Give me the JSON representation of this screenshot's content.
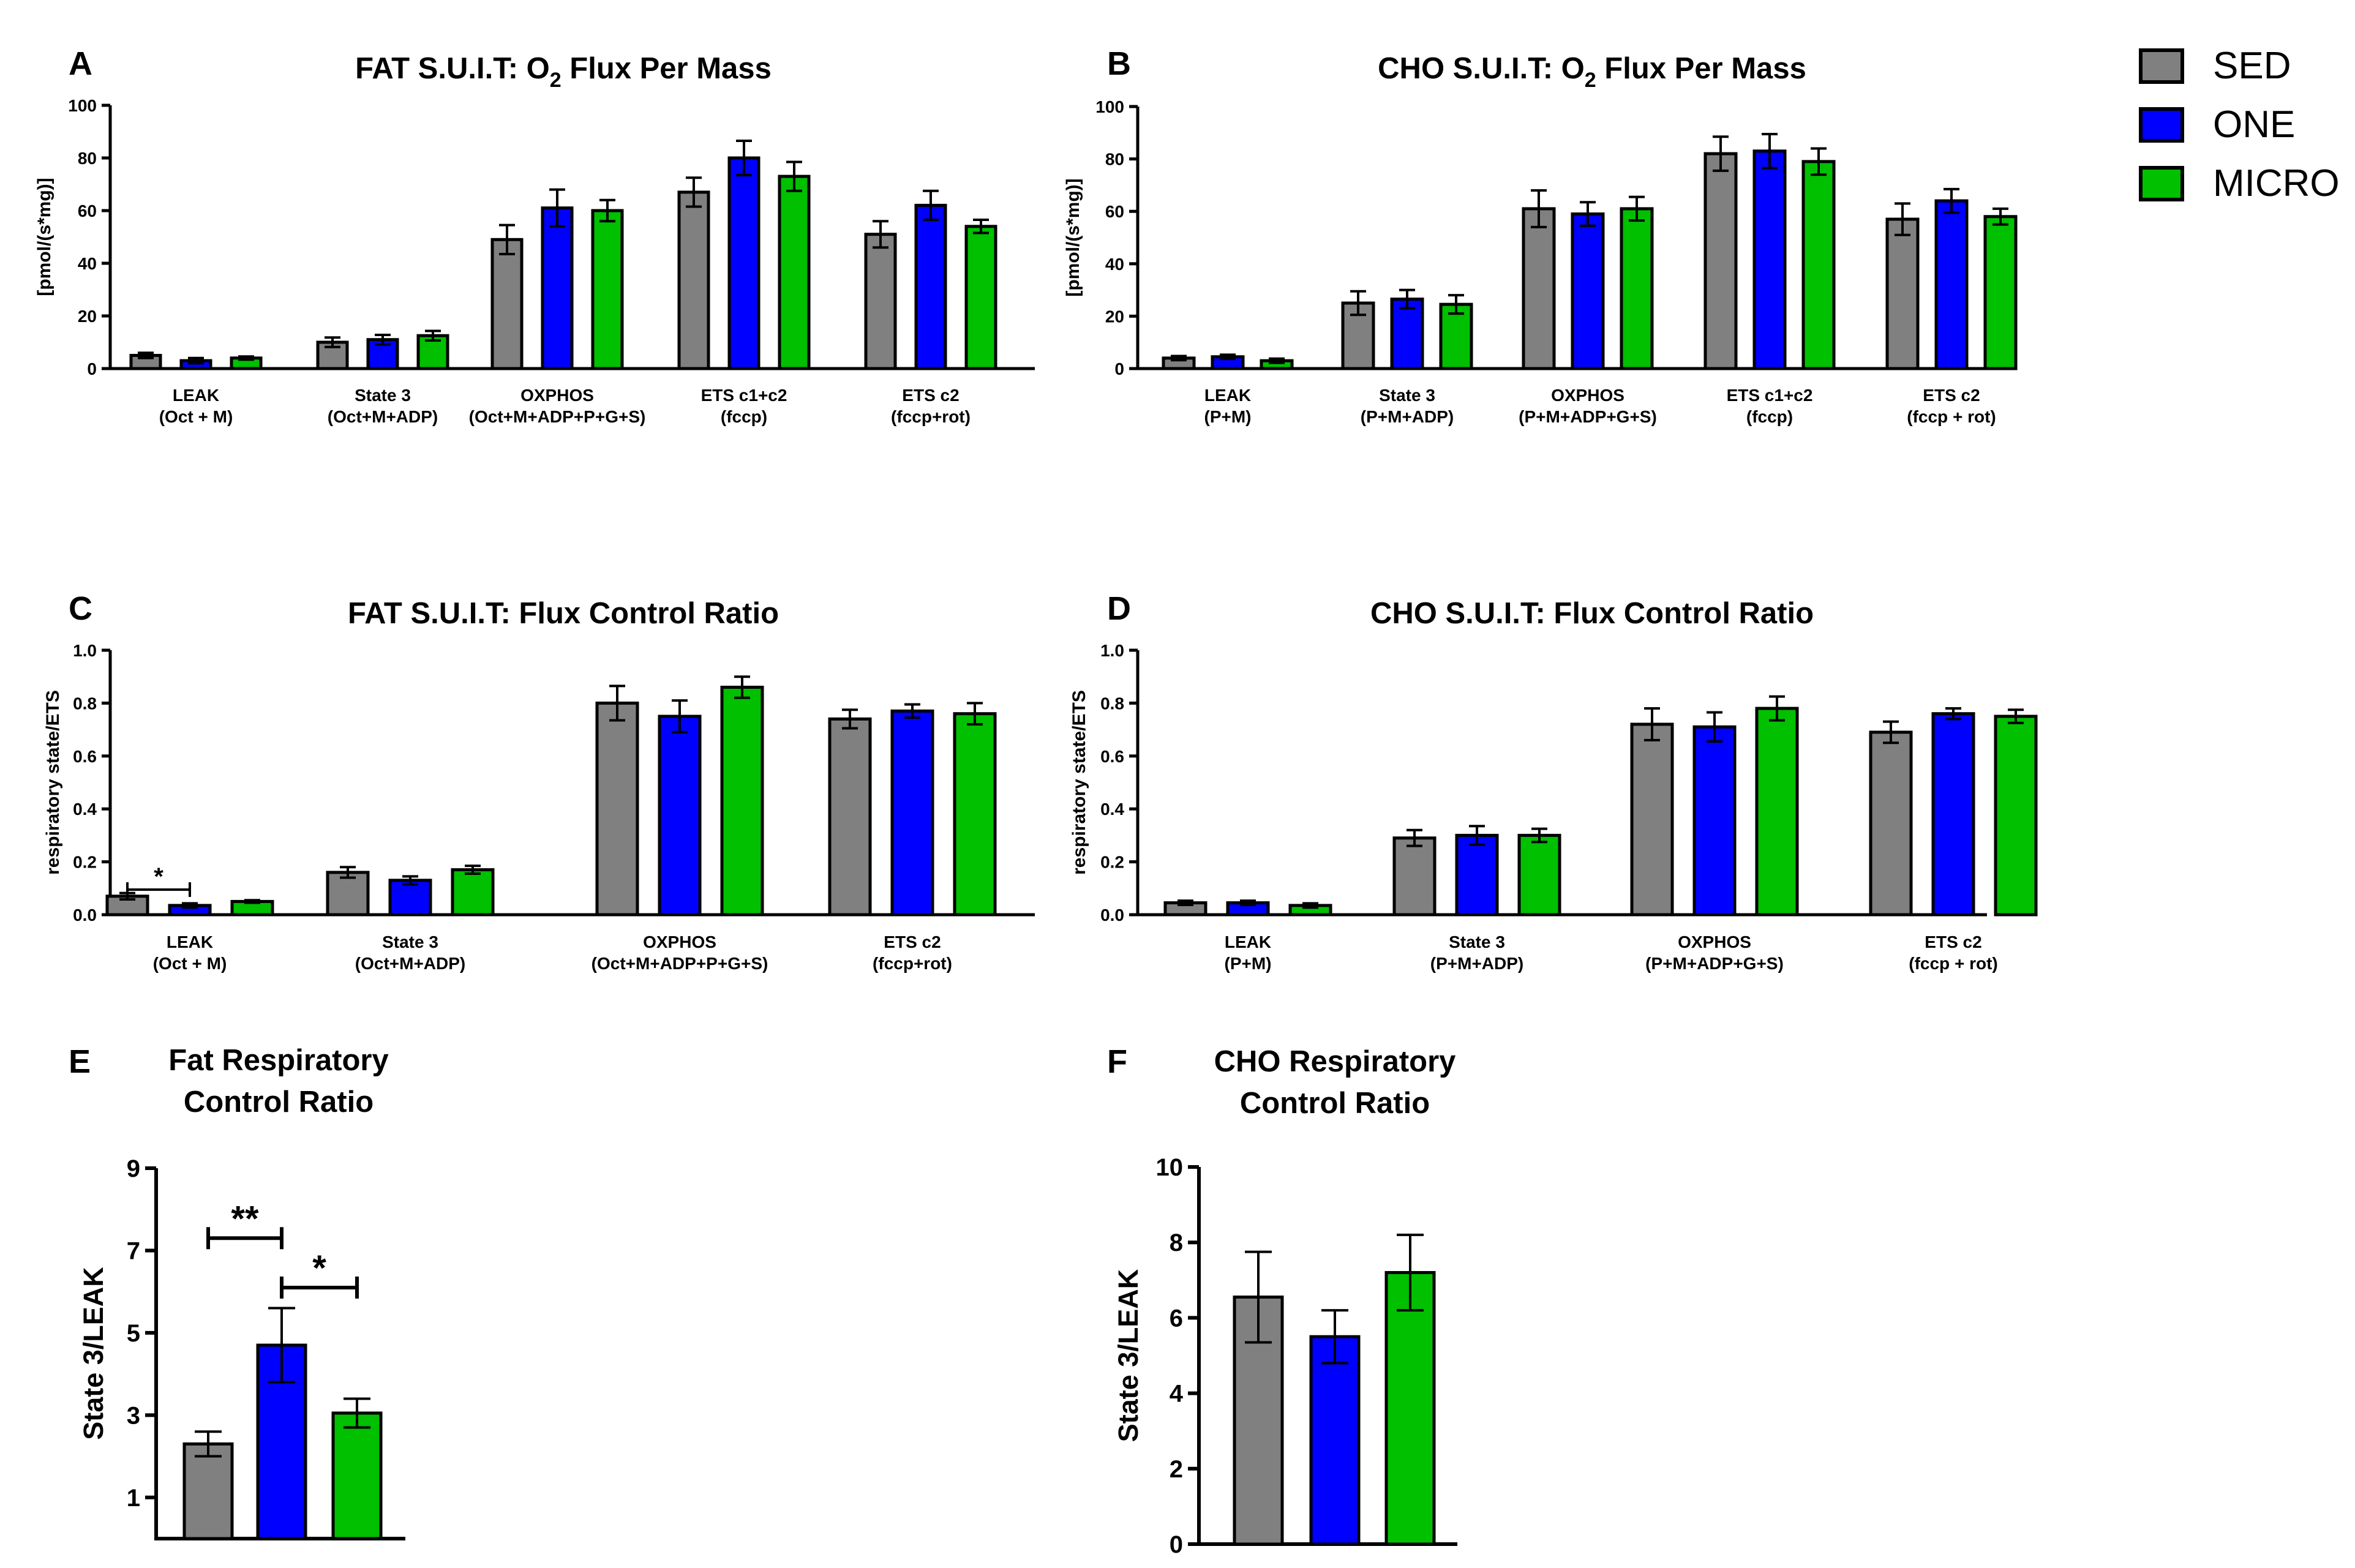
{
  "colors": {
    "SED": "#808080",
    "ONE": "#0000ff",
    "MICRO": "#00c000"
  },
  "legend": {
    "items": [
      "SED",
      "ONE",
      "MICRO"
    ]
  },
  "chart_data": [
    {
      "id": "A",
      "letter": "A",
      "type": "bar",
      "title": "FAT S.U.I.T: O",
      "title_sub": "2",
      "title_rest": " Flux Per Mass",
      "ylabel": "[pmol/(s*mg)]",
      "ylim": [
        0,
        100
      ],
      "ticks": [
        "0",
        "20",
        "40",
        "60",
        "80",
        "100"
      ],
      "categories": [
        [
          "LEAK",
          "(Oct + M)"
        ],
        [
          "State 3",
          "(Oct+M+ADP)"
        ],
        [
          "OXPHOS",
          "(Oct+M+ADP+P+G+S)"
        ],
        [
          "ETS c1+c2",
          "(fccp)"
        ],
        [
          "ETS c2",
          "(fccp+rot)"
        ]
      ],
      "series": [
        {
          "name": "SED",
          "values": [
            5,
            10,
            49,
            67,
            51
          ],
          "errors": [
            1,
            1.8,
            5.5,
            5.5,
            5
          ]
        },
        {
          "name": "ONE",
          "values": [
            3,
            11,
            61,
            80,
            62
          ],
          "errors": [
            1,
            1.8,
            7,
            6.5,
            5.5
          ]
        },
        {
          "name": "MICRO",
          "values": [
            4,
            12.5,
            60,
            73,
            54
          ],
          "errors": [
            0.6,
            1.8,
            4,
            5.5,
            2.5
          ]
        }
      ]
    },
    {
      "id": "B",
      "letter": "B",
      "type": "bar",
      "title": "CHO S.U.I.T: O",
      "title_sub": "2",
      "title_rest": " Flux Per Mass",
      "ylabel": "[pmol/(s*mg)]",
      "ylim": [
        0,
        100
      ],
      "ticks": [
        "0",
        "20",
        "40",
        "60",
        "80",
        "100"
      ],
      "categories": [
        [
          "LEAK",
          "(P+M)"
        ],
        [
          "State 3",
          "(P+M+ADP)"
        ],
        [
          "OXPHOS",
          "(P+M+ADP+G+S)"
        ],
        [
          "ETS c1+c2",
          "(fccp)"
        ],
        [
          "ETS c2",
          "(fccp + rot)"
        ]
      ],
      "series": [
        {
          "name": "SED",
          "values": [
            4,
            25,
            61,
            82,
            57
          ],
          "errors": [
            0.8,
            4.5,
            7,
            6.5,
            6
          ]
        },
        {
          "name": "ONE",
          "values": [
            4.5,
            26.5,
            59,
            83,
            64
          ],
          "errors": [
            0.8,
            3.5,
            4.5,
            6.5,
            4.5
          ]
        },
        {
          "name": "MICRO",
          "values": [
            3,
            24.5,
            61,
            79,
            58
          ],
          "errors": [
            0.8,
            3.5,
            4.5,
            5,
            3
          ]
        }
      ]
    },
    {
      "id": "C",
      "letter": "C",
      "type": "bar",
      "title": "FAT S.U.I.T: Flux Control Ratio",
      "ylabel": "respiratory state/ETS",
      "ylim": [
        0,
        1.0
      ],
      "ticks": [
        "0.0",
        "0.2",
        "0.4",
        "0.6",
        "0.8",
        "1.0"
      ],
      "categories": [
        [
          "LEAK",
          "(Oct + M)"
        ],
        [
          "State 3",
          "(Oct+M+ADP)"
        ],
        [
          "OXPHOS",
          "(Oct+M+ADP+P+G+S)"
        ],
        [
          "ETS c2",
          "(fccp+rot)"
        ]
      ],
      "series": [
        {
          "name": "SED",
          "values": [
            0.07,
            0.16,
            0.8,
            0.74
          ],
          "errors": [
            0.012,
            0.02,
            0.065,
            0.035
          ]
        },
        {
          "name": "ONE",
          "values": [
            0.035,
            0.13,
            0.75,
            0.77
          ],
          "errors": [
            0.008,
            0.015,
            0.06,
            0.025
          ]
        },
        {
          "name": "MICRO",
          "values": [
            0.05,
            0.17,
            0.86,
            0.76
          ],
          "errors": [
            0.005,
            0.015,
            0.04,
            0.04
          ]
        }
      ],
      "annotations": [
        {
          "text": "*",
          "category": 0,
          "from_series": 0,
          "to_series": 1,
          "value": 0.095
        }
      ]
    },
    {
      "id": "D",
      "letter": "D",
      "type": "bar",
      "title": "CHO S.U.I.T: Flux Control Ratio",
      "ylabel": "respiratory state/ETS",
      "ylim": [
        0,
        1.0
      ],
      "ticks": [
        "0.0",
        "0.2",
        "0.4",
        "0.6",
        "0.8",
        "1.0"
      ],
      "categories": [
        [
          "LEAK",
          "(P+M)"
        ],
        [
          "State 3",
          "(P+M+ADP)"
        ],
        [
          "OXPHOS",
          "(P+M+ADP+G+S)"
        ],
        [
          "ETS c2",
          "(fccp + rot)"
        ]
      ],
      "series": [
        {
          "name": "SED",
          "values": [
            0.045,
            0.29,
            0.72,
            0.69
          ],
          "errors": [
            0.008,
            0.03,
            0.06,
            0.04
          ]
        },
        {
          "name": "ONE",
          "values": [
            0.045,
            0.3,
            0.71,
            0.76
          ],
          "errors": [
            0.008,
            0.035,
            0.055,
            0.02
          ]
        },
        {
          "name": "MICRO",
          "values": [
            0.035,
            0.3,
            0.78,
            0.75
          ],
          "errors": [
            0.008,
            0.025,
            0.045,
            0.025
          ]
        }
      ]
    },
    {
      "id": "E",
      "letter": "E",
      "type": "bar",
      "title_lines": [
        "Fat Respiratory",
        "Control Ratio"
      ],
      "ylabel": "State 3/LEAK",
      "ylim": [
        0,
        9
      ],
      "ticks": [
        "1",
        "3",
        "5",
        "7",
        "9"
      ],
      "tick_values": [
        1,
        3,
        5,
        7,
        9
      ],
      "categories": [
        "SED",
        "ONE",
        "MICRO"
      ],
      "values": [
        2.3,
        4.7,
        3.05
      ],
      "errors": [
        0.3,
        0.9,
        0.35
      ],
      "annotations": [
        {
          "text": "**",
          "from": 0,
          "to": 1,
          "value": 7.3
        },
        {
          "text": "*",
          "from": 1,
          "to": 2,
          "value": 6.1
        }
      ]
    },
    {
      "id": "F",
      "letter": "F",
      "type": "bar",
      "title_lines": [
        "CHO Respiratory",
        "Control Ratio"
      ],
      "ylabel": "State 3/LEAK",
      "ylim": [
        0,
        10
      ],
      "ticks": [
        "0",
        "2",
        "4",
        "6",
        "8",
        "10"
      ],
      "categories": [
        "SED",
        "ONE",
        "MICRO"
      ],
      "values": [
        6.55,
        5.5,
        7.2
      ],
      "errors": [
        1.2,
        0.7,
        1.0
      ]
    }
  ]
}
